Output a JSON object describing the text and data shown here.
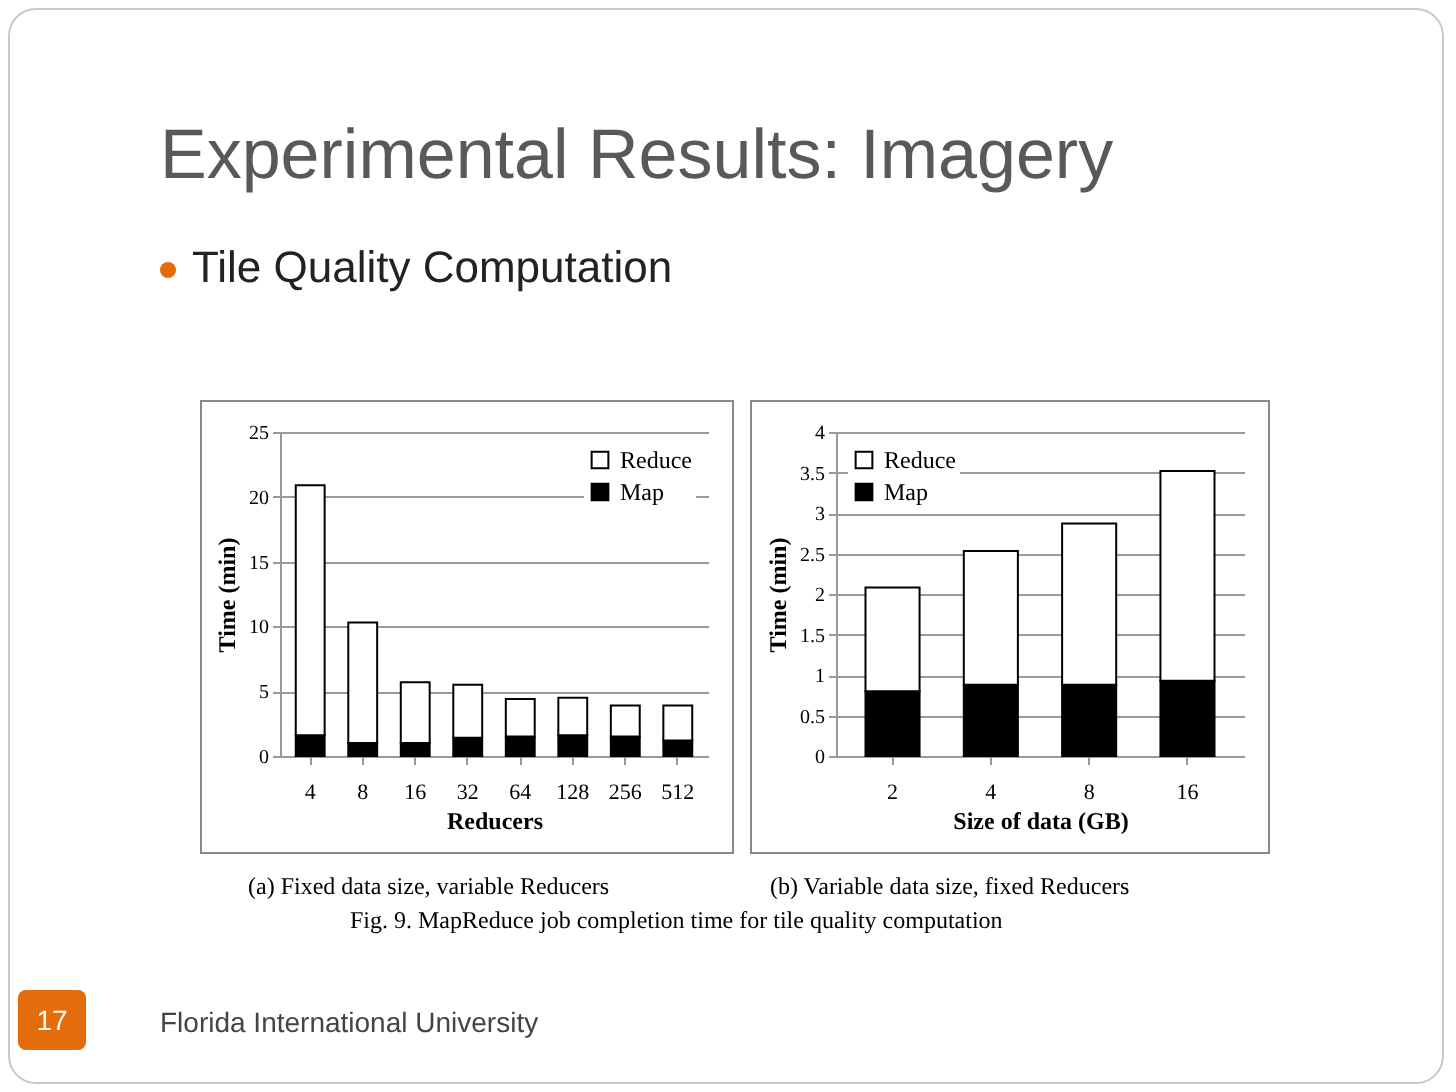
{
  "chart_data": [
    {
      "type": "bar",
      "title": "Experimental Results: Imagery",
      "subtitle": "Tile Quality Computation",
      "xlabel": "Reducers",
      "ylabel": "Time (min)",
      "categories": [
        "4",
        "8",
        "16",
        "32",
        "64",
        "128",
        "256",
        "512"
      ],
      "stacked": true,
      "series": [
        {
          "name": "Map",
          "color": "#000000",
          "values": [
            1.6,
            1.0,
            1.0,
            1.4,
            1.5,
            1.6,
            1.5,
            1.2
          ]
        },
        {
          "name": "Reduce",
          "color": "#ffffff",
          "values": [
            19.3,
            9.3,
            4.7,
            4.1,
            2.9,
            2.9,
            2.4,
            2.7
          ]
        }
      ],
      "ylim": [
        0,
        25
      ],
      "yticks": [
        0,
        5,
        10,
        15,
        20,
        25
      ],
      "grid": "y",
      "legend": "top right",
      "annotations": [
        "(a) Fixed data size, variable Reducers",
        "Fig. 9. MapReduce job completion time for tile quality computation",
        "Florida International University",
        "17"
      ]
    },
    {
      "type": "bar",
      "xlabel": "Size of data (GB)",
      "ylabel": "Time (min)",
      "categories": [
        "2",
        "4",
        "8",
        "16"
      ],
      "stacked": true,
      "series": [
        {
          "name": "Map",
          "color": "#000000",
          "values": [
            0.8,
            0.88,
            0.88,
            0.93
          ]
        },
        {
          "name": "Reduce",
          "color": "#ffffff",
          "values": [
            1.28,
            1.65,
            1.99,
            2.59
          ]
        }
      ],
      "ylim": [
        0,
        4
      ],
      "yticks": [
        0,
        0.5,
        1,
        1.5,
        2,
        2.5,
        3,
        3.5,
        4
      ],
      "grid": "y",
      "legend": "top left",
      "annotations": [
        "(b) Variable data size, fixed Reducers"
      ]
    }
  ]
}
